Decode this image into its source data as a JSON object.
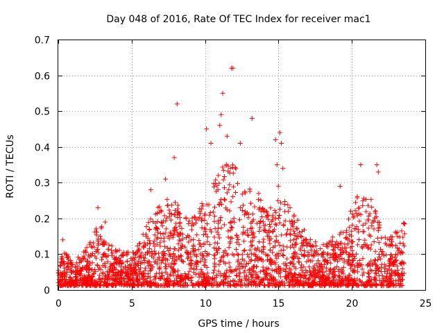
{
  "chart_data": {
    "type": "scatter",
    "title": "Day 048 of 2016, Rate Of TEC Index for receiver mac1",
    "xlabel": "GPS time / hours",
    "ylabel": "ROTI / TECUs",
    "xlim": [
      0,
      25
    ],
    "ylim": [
      0,
      0.7
    ],
    "xticks": [
      0,
      5,
      10,
      15,
      20,
      25
    ],
    "yticks": [
      0,
      0.1,
      0.2,
      0.3,
      0.4,
      0.5,
      0.6,
      0.7
    ],
    "grid": true,
    "marker": "+",
    "color": "#ff0000",
    "x_range_of_data": [
      0,
      23.6
    ],
    "envelope": {
      "hours": [
        0,
        0.5,
        1,
        1.5,
        2,
        2.5,
        3,
        3.5,
        4,
        4.5,
        5,
        5.5,
        6,
        6.5,
        7,
        7.5,
        8,
        8.5,
        9,
        9.5,
        10,
        10.5,
        11,
        11.5,
        12,
        12.5,
        13,
        13.5,
        14,
        14.5,
        15,
        15.5,
        16,
        16.5,
        17,
        17.5,
        18,
        18.5,
        19,
        19.5,
        20,
        20.5,
        21,
        21.5,
        22,
        22.5,
        23,
        23.6
      ],
      "typical_max": [
        0.09,
        0.11,
        0.07,
        0.1,
        0.13,
        0.17,
        0.18,
        0.13,
        0.11,
        0.12,
        0.1,
        0.13,
        0.18,
        0.22,
        0.24,
        0.26,
        0.25,
        0.22,
        0.2,
        0.22,
        0.26,
        0.3,
        0.34,
        0.36,
        0.35,
        0.33,
        0.3,
        0.28,
        0.25,
        0.26,
        0.3,
        0.27,
        0.22,
        0.19,
        0.15,
        0.14,
        0.14,
        0.15,
        0.16,
        0.18,
        0.24,
        0.28,
        0.26,
        0.28,
        0.18,
        0.14,
        0.17,
        0.2
      ]
    },
    "outliers": [
      {
        "x": 0.3,
        "y": 0.14
      },
      {
        "x": 2.7,
        "y": 0.23
      },
      {
        "x": 3.2,
        "y": 0.19
      },
      {
        "x": 6.3,
        "y": 0.28
      },
      {
        "x": 7.3,
        "y": 0.31
      },
      {
        "x": 7.9,
        "y": 0.37
      },
      {
        "x": 8.1,
        "y": 0.52
      },
      {
        "x": 10.1,
        "y": 0.45
      },
      {
        "x": 10.4,
        "y": 0.41
      },
      {
        "x": 11.0,
        "y": 0.46
      },
      {
        "x": 11.1,
        "y": 0.49
      },
      {
        "x": 11.2,
        "y": 0.55
      },
      {
        "x": 11.5,
        "y": 0.43
      },
      {
        "x": 11.8,
        "y": 0.62
      },
      {
        "x": 11.9,
        "y": 0.62
      },
      {
        "x": 12.4,
        "y": 0.41
      },
      {
        "x": 13.2,
        "y": 0.48
      },
      {
        "x": 14.8,
        "y": 0.42
      },
      {
        "x": 14.9,
        "y": 0.35
      },
      {
        "x": 15.1,
        "y": 0.44
      },
      {
        "x": 15.2,
        "y": 0.41
      },
      {
        "x": 15.3,
        "y": 0.34
      },
      {
        "x": 19.2,
        "y": 0.29
      },
      {
        "x": 20.6,
        "y": 0.35
      },
      {
        "x": 21.7,
        "y": 0.35
      },
      {
        "x": 21.8,
        "y": 0.33
      }
    ]
  }
}
